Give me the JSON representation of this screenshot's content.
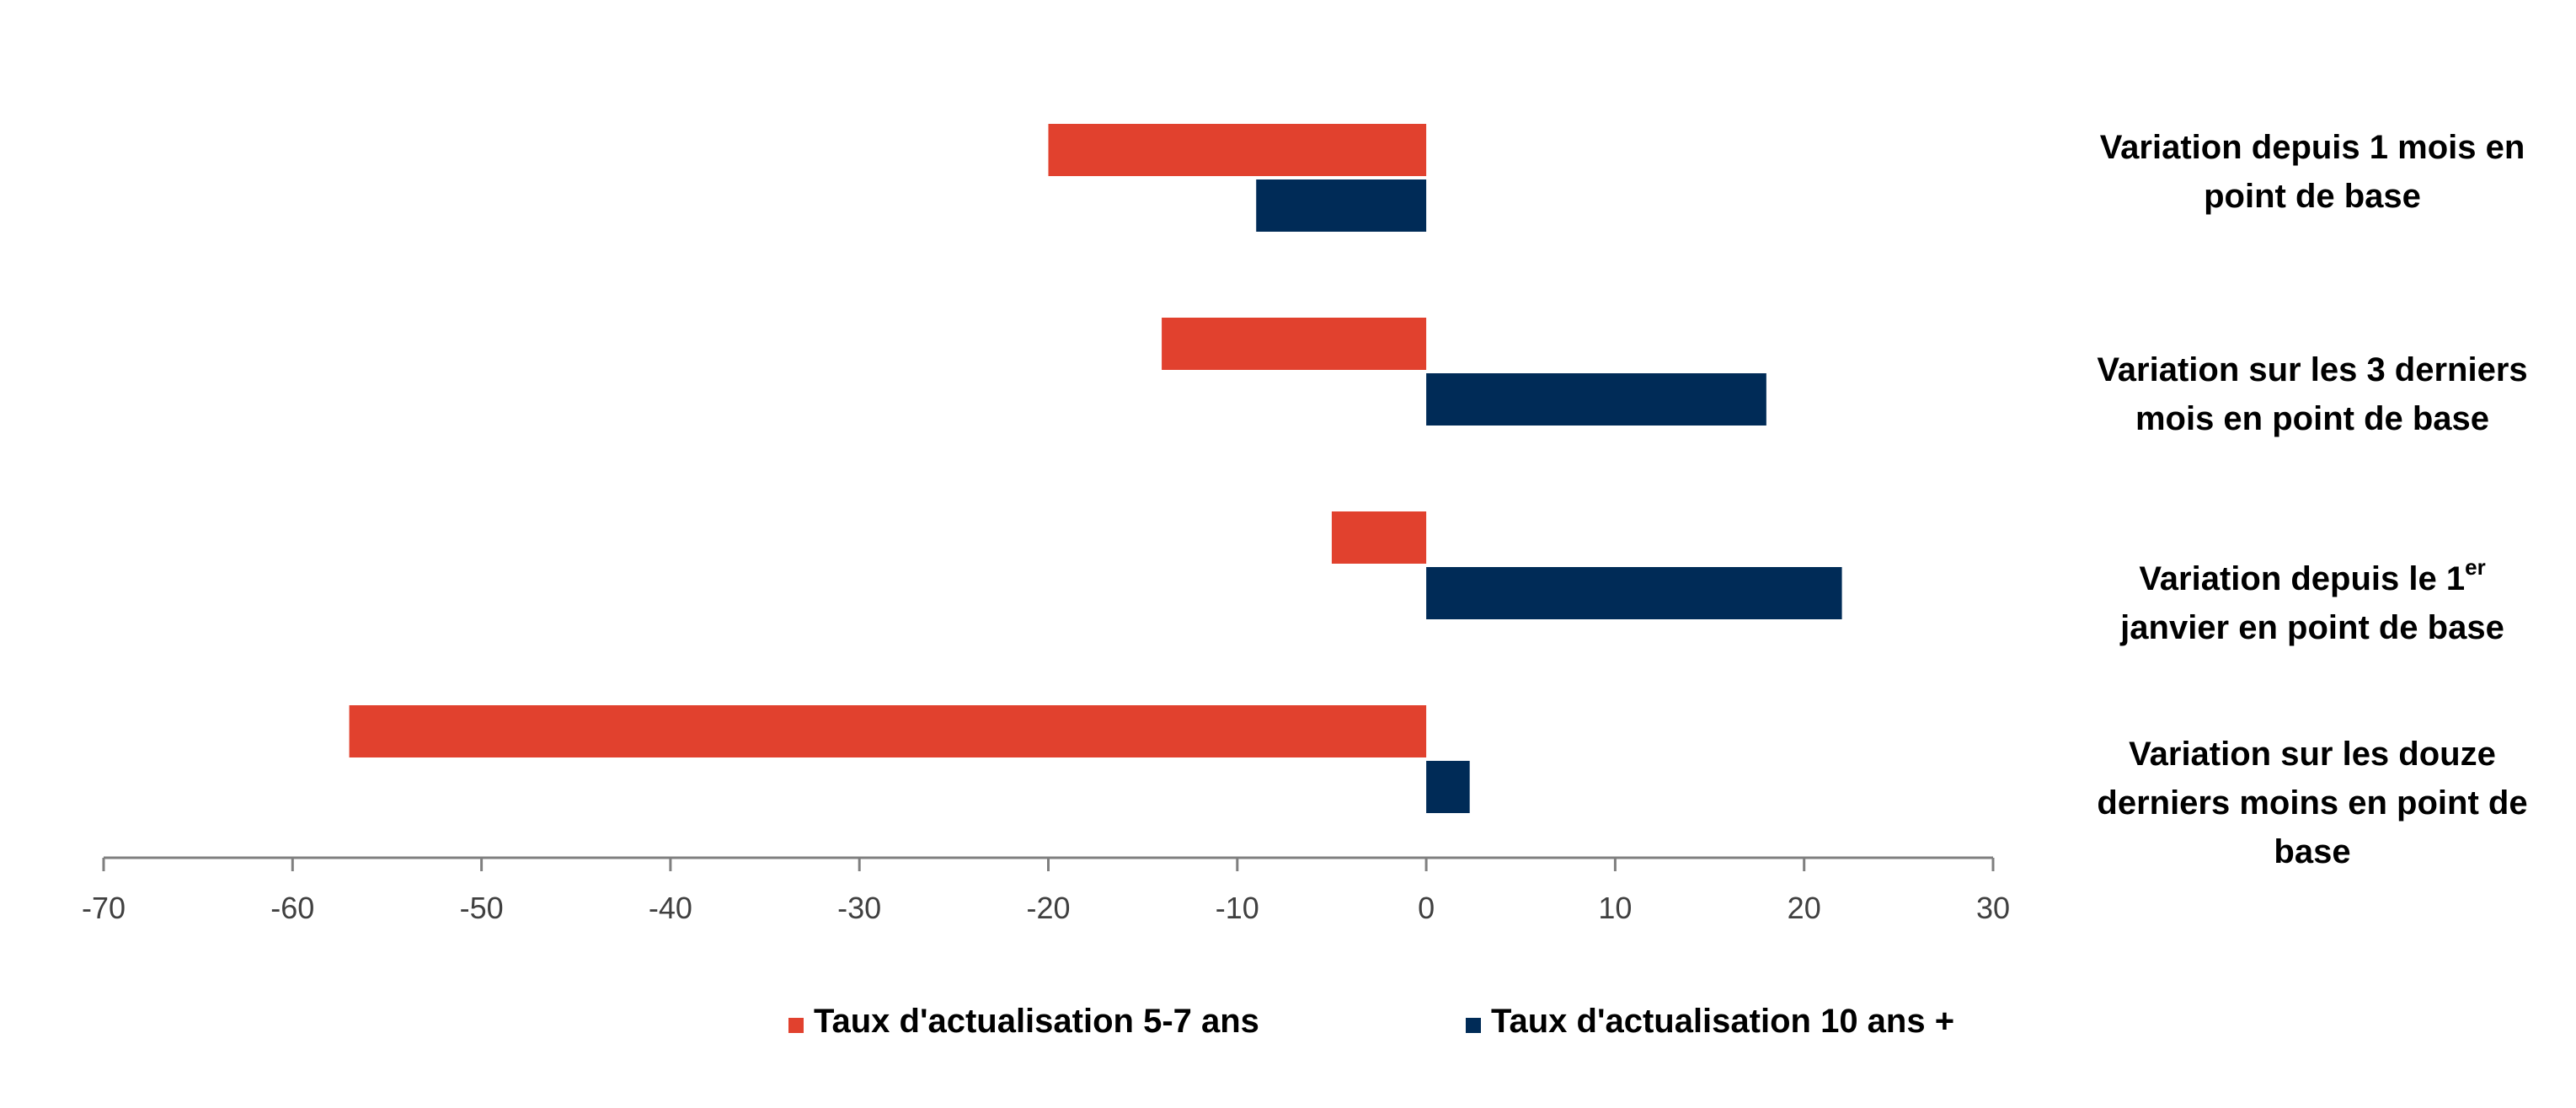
{
  "colors": {
    "series_1": "#E1412E",
    "series_2": "#002B57",
    "axis": "#7F7F7F"
  },
  "chart_data": {
    "type": "bar",
    "orientation": "horizontal",
    "title": "",
    "xlabel": "",
    "ylabel": "",
    "xlim": [
      -70,
      30
    ],
    "xticks": [
      -70,
      -60,
      -50,
      -40,
      -30,
      -20,
      -10,
      0,
      10,
      20,
      30
    ],
    "grid": false,
    "legend_placement": "bottom",
    "categories": [
      {
        "main": "Variation depuis 1 mois en point de base",
        "sup": "",
        "line1": "Variation depuis 1 mois en",
        "line1_sup": "",
        "line2": "point de base",
        "line3": ""
      },
      {
        "main": "Variation sur les 3 derniers mois en point de base",
        "sup": "",
        "line1": "Variation sur les 3 derniers",
        "line1_sup": "",
        "line2": "mois en point de base",
        "line3": ""
      },
      {
        "main": "Variation depuis le 1er janvier en point de base",
        "sup": "er",
        "line1": "Variation depuis le 1",
        "line1_sup": "er",
        "line2": "janvier en point de base",
        "line3": ""
      },
      {
        "main": "Variation sur les douze derniers moins en point de base",
        "sup": "",
        "line1": "Variation sur les douze",
        "line1_sup": "",
        "line2": "derniers moins en point de",
        "line3": "base"
      }
    ],
    "series": [
      {
        "name": "Taux d'actualisation 5-7 ans",
        "values": [
          -20,
          -14,
          -5,
          -57
        ]
      },
      {
        "name": "Taux d'actualisation 10 ans +",
        "values": [
          -9,
          18,
          22,
          2.3
        ]
      }
    ]
  }
}
